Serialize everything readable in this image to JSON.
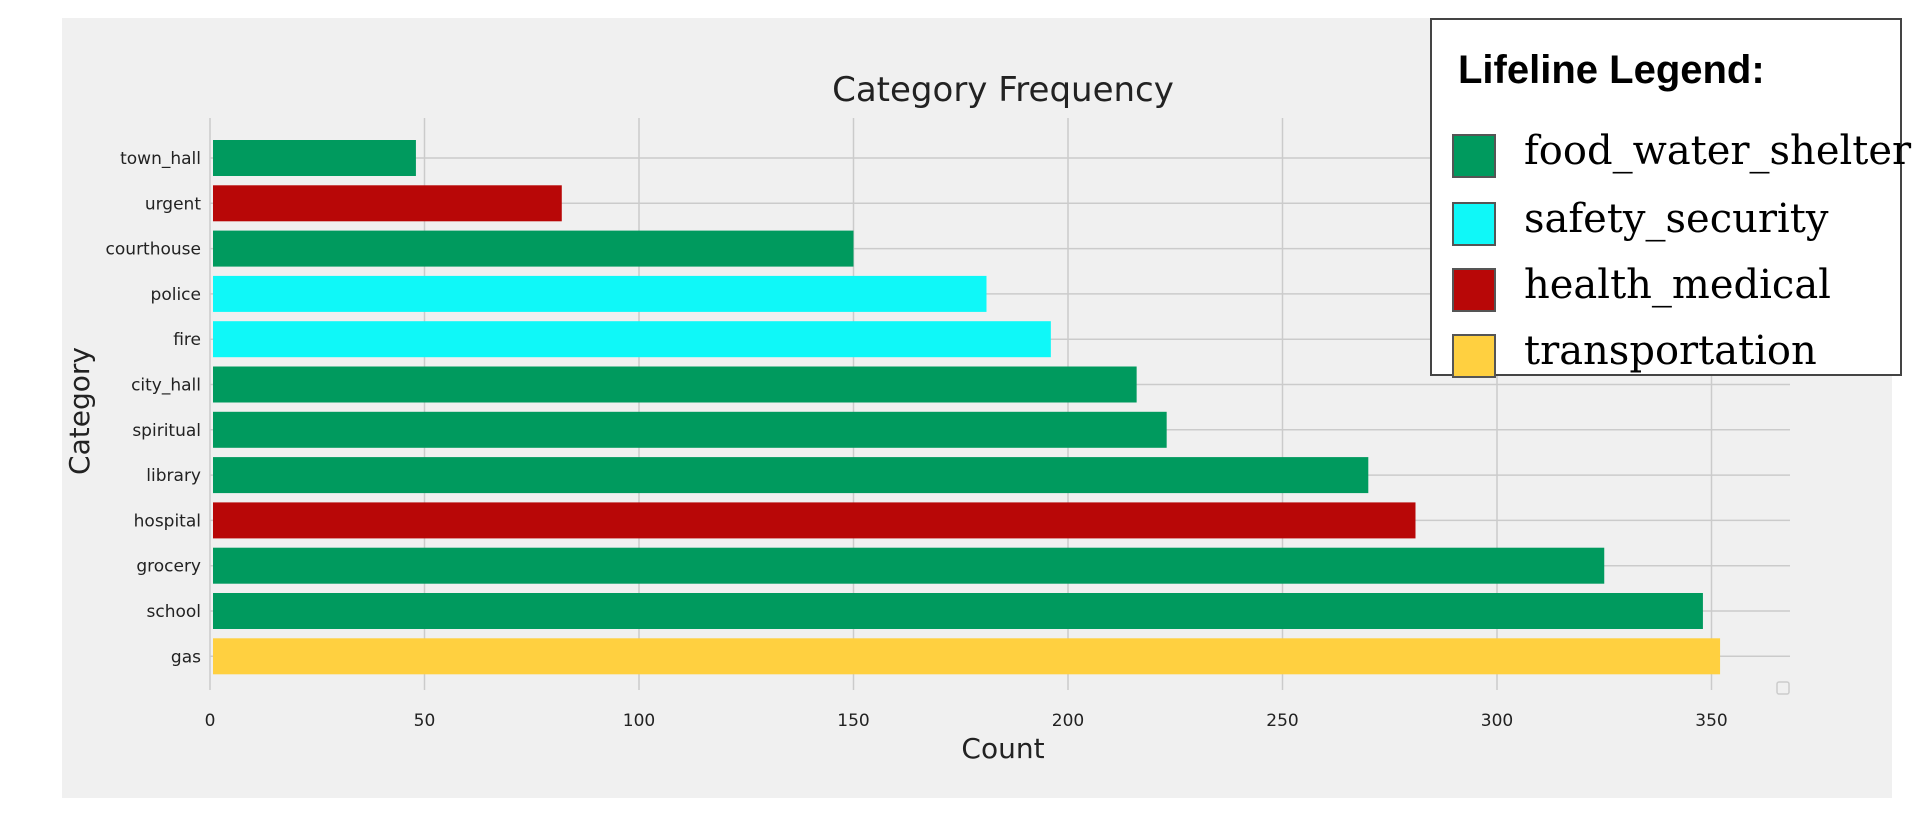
{
  "chart_data": {
    "type": "bar",
    "orientation": "horizontal",
    "title": "Category Frequency",
    "xlabel": "Count",
    "ylabel": "Category",
    "xlim": [
      0,
      368
    ],
    "xticks": [
      0,
      50,
      100,
      150,
      200,
      250,
      300,
      350
    ],
    "grid": true,
    "categories": [
      "town_hall",
      "urgent",
      "courthouse",
      "police",
      "fire",
      "city_hall",
      "spiritual",
      "library",
      "hospital",
      "grocery",
      "school",
      "gas"
    ],
    "values": [
      48,
      82,
      150,
      181,
      196,
      216,
      223,
      270,
      281,
      325,
      348,
      352
    ],
    "bar_groups": [
      "food_water_shelter",
      "health_medical",
      "food_water_shelter",
      "safety_security",
      "safety_security",
      "food_water_shelter",
      "food_water_shelter",
      "food_water_shelter",
      "health_medical",
      "food_water_shelter",
      "food_water_shelter",
      "transportation"
    ]
  },
  "legend": {
    "title": "Lifeline Legend:",
    "placement": "top-right",
    "items": [
      {
        "key": "food_water_shelter",
        "label": "food_water_shelter",
        "color": "#009a5e"
      },
      {
        "key": "safety_security",
        "label": "safety_security",
        "color": "#0ff8f8"
      },
      {
        "key": "health_medical",
        "label": "health_medical",
        "color": "#b80707"
      },
      {
        "key": "transportation",
        "label": "transportation",
        "color": "#ffd040"
      }
    ]
  }
}
